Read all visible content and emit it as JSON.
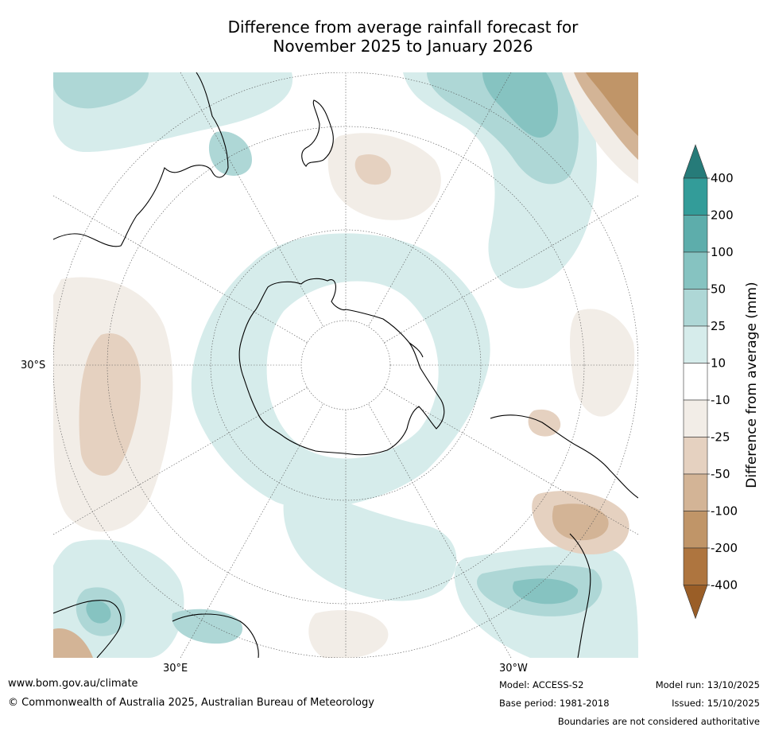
{
  "title": {
    "line1": "Difference from average rainfall forecast for",
    "line2": "November 2025 to January 2026"
  },
  "axis_labels": {
    "lat_30s": "30°S",
    "lon_30e": "30°E",
    "lon_30w": "30°W"
  },
  "colorbar": {
    "title": "Difference from average (mm)",
    "ticks": [
      "400",
      "200",
      "100",
      "50",
      "25",
      "10",
      "-10",
      "-25",
      "-50",
      "-100",
      "-200",
      "-400"
    ],
    "bands": [
      {
        "from": "200",
        "to": "400",
        "color": "#339c99"
      },
      {
        "from": "100",
        "to": "200",
        "color": "#5dadab"
      },
      {
        "from": "50",
        "to": "100",
        "color": "#86c3c1"
      },
      {
        "from": "25",
        "to": "50",
        "color": "#aed7d6"
      },
      {
        "from": "10",
        "to": "25",
        "color": "#d6eceb"
      },
      {
        "from": "-10",
        "to": "10",
        "color": "#ffffff"
      },
      {
        "from": "-25",
        "to": "-10",
        "color": "#f2ede7"
      },
      {
        "from": "-50",
        "to": "-25",
        "color": "#e5d1c0"
      },
      {
        "from": "-100",
        "to": "-50",
        "color": "#d3b496"
      },
      {
        "from": "-200",
        "to": "-100",
        "color": "#c09568"
      },
      {
        "from": "-400",
        "to": "-200",
        "color": "#ae753f"
      }
    ],
    "top_arrow_color": "#267b79",
    "bottom_arrow_color": "#9a5e27"
  },
  "footer": {
    "url": "www.bom.gov.au/climate",
    "copyright": "© Commonwealth of Australia 2025, Australian Bureau of Meteorology",
    "model": "Model: ACCESS-S2",
    "base_period": "Base period: 1981-2018",
    "model_run": "Model run: 13/10/2025",
    "issued": "Issued: 15/10/2025",
    "disclaimer": "Boundaries are not considered authoritative"
  }
}
